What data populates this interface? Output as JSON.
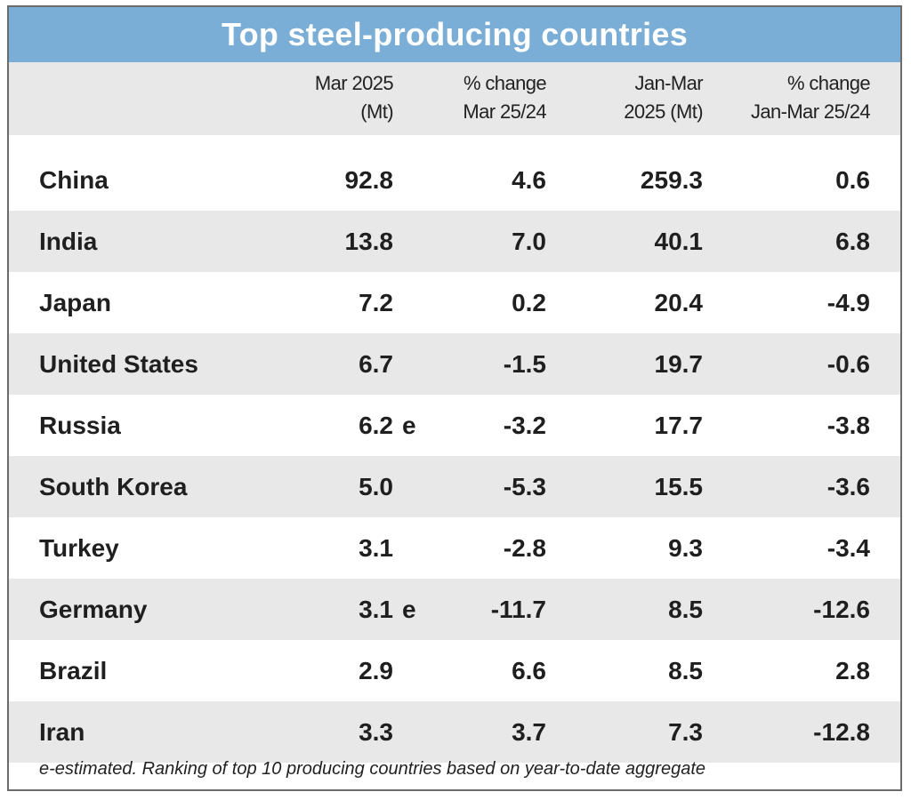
{
  "chart_data": {
    "type": "table",
    "title": "Top steel-producing countries",
    "columns": [
      {
        "line1": "Mar 2025",
        "line2": "(Mt)"
      },
      {
        "line1": "% change",
        "line2": "Mar 25/24"
      },
      {
        "line1": "Jan-Mar",
        "line2": "2025 (Mt)"
      },
      {
        "line1": "% change",
        "line2": "Jan-Mar 25/24"
      }
    ],
    "rows": [
      {
        "country": "China",
        "mar_2025": "92.8",
        "flag": "",
        "pct_mar": "4.6",
        "jan_mar": "259.3",
        "pct_jan_mar": "0.6"
      },
      {
        "country": "India",
        "mar_2025": "13.8",
        "flag": "",
        "pct_mar": "7.0",
        "jan_mar": "40.1",
        "pct_jan_mar": "6.8"
      },
      {
        "country": "Japan",
        "mar_2025": "7.2",
        "flag": "",
        "pct_mar": "0.2",
        "jan_mar": "20.4",
        "pct_jan_mar": "-4.9"
      },
      {
        "country": "United States",
        "mar_2025": "6.7",
        "flag": "",
        "pct_mar": "-1.5",
        "jan_mar": "19.7",
        "pct_jan_mar": "-0.6"
      },
      {
        "country": "Russia",
        "mar_2025": "6.2",
        "flag": "e",
        "pct_mar": "-3.2",
        "jan_mar": "17.7",
        "pct_jan_mar": "-3.8"
      },
      {
        "country": "South Korea",
        "mar_2025": "5.0",
        "flag": "",
        "pct_mar": "-5.3",
        "jan_mar": "15.5",
        "pct_jan_mar": "-3.6"
      },
      {
        "country": "Turkey",
        "mar_2025": "3.1",
        "flag": "",
        "pct_mar": "-2.8",
        "jan_mar": "9.3",
        "pct_jan_mar": "-3.4"
      },
      {
        "country": "Germany",
        "mar_2025": "3.1",
        "flag": "e",
        "pct_mar": "-11.7",
        "jan_mar": "8.5",
        "pct_jan_mar": "-12.6"
      },
      {
        "country": "Brazil",
        "mar_2025": "2.9",
        "flag": "",
        "pct_mar": "6.6",
        "jan_mar": "8.5",
        "pct_jan_mar": "2.8"
      },
      {
        "country": "Iran",
        "mar_2025": "3.3",
        "flag": "",
        "pct_mar": "3.7",
        "jan_mar": "7.3",
        "pct_jan_mar": "-12.8"
      }
    ],
    "footnote": "e-estimated. Ranking of top 10 producing countries based on year-to-date aggregate"
  },
  "colors": {
    "title_bar": "#7aaed6",
    "shaded_row": "#e8e8e8",
    "title_text": "#ffffff"
  }
}
